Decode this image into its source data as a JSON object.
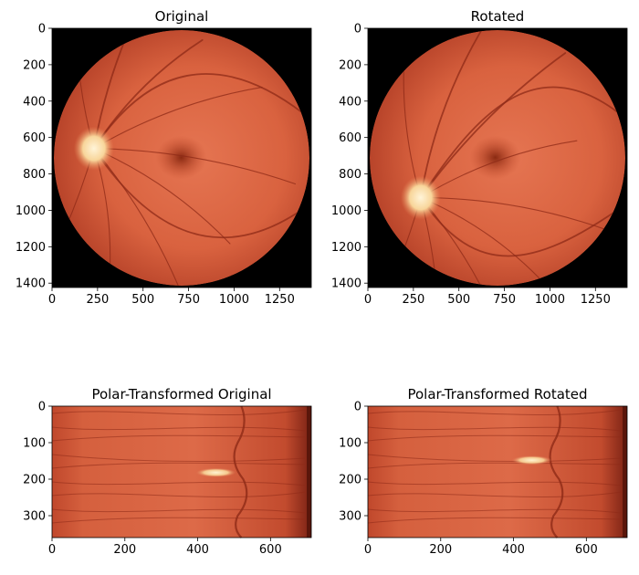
{
  "figure": {
    "background": "#ffffff",
    "panels": [
      {
        "id": "original",
        "title": "Original",
        "kind": "fundus",
        "xticks": [
          0,
          250,
          500,
          750,
          1000,
          1250
        ],
        "yticks": [
          0,
          200,
          400,
          600,
          800,
          1000,
          1200,
          1400
        ],
        "xlim": [
          0,
          1424
        ],
        "ylim": [
          0,
          1424
        ],
        "optic_disc_side": "left",
        "optic_disc_center": [
          230,
          660
        ],
        "fovea_center": [
          710,
          710
        ]
      },
      {
        "id": "rotated",
        "title": "Rotated",
        "kind": "fundus",
        "xticks": [
          0,
          250,
          500,
          750,
          1000,
          1250
        ],
        "yticks": [
          0,
          200,
          400,
          600,
          800,
          1000,
          1200,
          1400
        ],
        "xlim": [
          0,
          1424
        ],
        "ylim": [
          0,
          1424
        ],
        "optic_disc_side": "lower-left",
        "optic_disc_center": [
          290,
          930
        ],
        "fovea_center": [
          700,
          710
        ]
      },
      {
        "id": "polar-original",
        "title": "Polar-Transformed Original",
        "kind": "polar",
        "xticks": [
          0,
          200,
          400,
          600
        ],
        "yticks": [
          0,
          100,
          200,
          300
        ],
        "xlim": [
          0,
          712
        ],
        "ylim": [
          0,
          360
        ],
        "bright_band_center": [
          450,
          182
        ]
      },
      {
        "id": "polar-rotated",
        "title": "Polar-Transformed Rotated",
        "kind": "polar",
        "xticks": [
          0,
          200,
          400,
          600
        ],
        "yticks": [
          0,
          100,
          200,
          300
        ],
        "xlim": [
          0,
          712
        ],
        "ylim": [
          0,
          360
        ],
        "bright_band_center": [
          450,
          148
        ]
      }
    ],
    "colors": {
      "retina_light": "#e57552",
      "retina_mid": "#cf5a38",
      "retina_dark": "#a8371c",
      "vessel": "#8e2a17",
      "optic_disc": "#fbe3b0",
      "fovea": "#8a2a12",
      "image_border": "#000000"
    }
  }
}
